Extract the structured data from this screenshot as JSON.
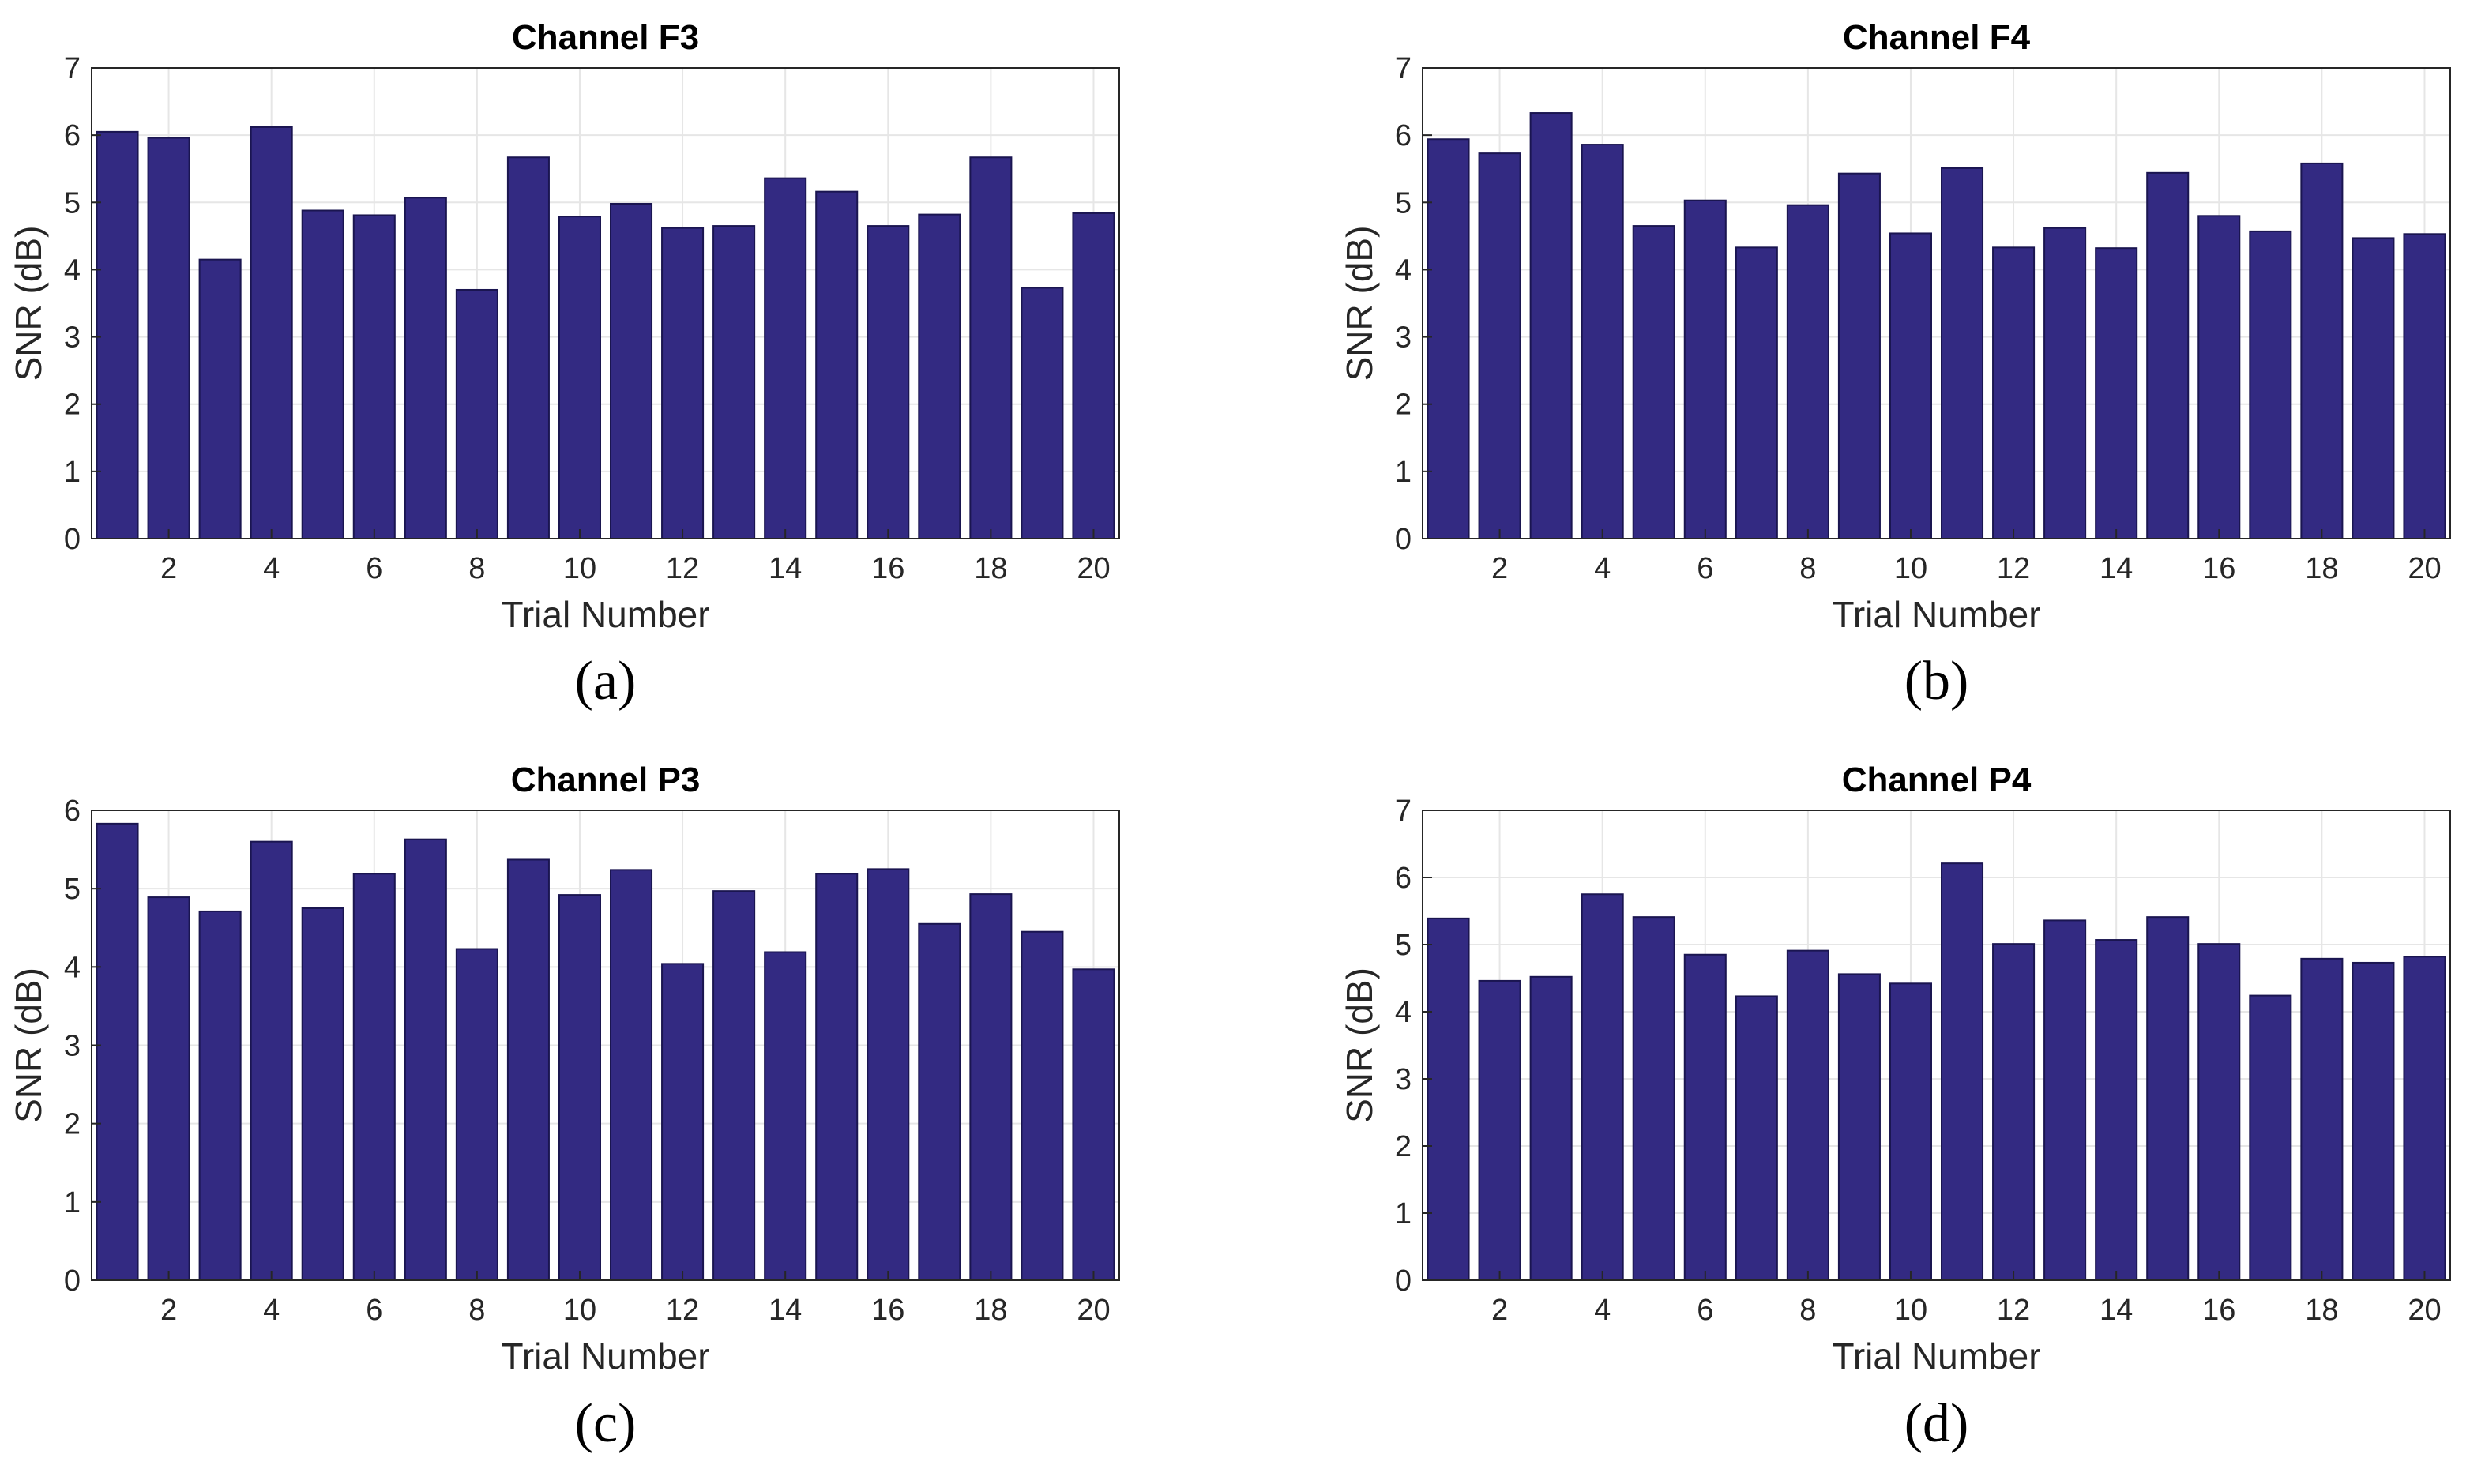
{
  "colors": {
    "bar": "#332a82",
    "bar_edge": "#1a1550",
    "grid": "#e6e6e6",
    "axis": "#262626",
    "text": "#262626"
  },
  "chart_data": [
    {
      "type": "bar",
      "title": "Channel F3",
      "caption": "(a)",
      "xlabel": "Trial Number",
      "ylabel": "SNR (dB)",
      "x": [
        1,
        2,
        3,
        4,
        5,
        6,
        7,
        8,
        9,
        10,
        11,
        12,
        13,
        14,
        15,
        16,
        17,
        18,
        19,
        20
      ],
      "values": [
        6.05,
        5.96,
        4.15,
        6.12,
        4.88,
        4.81,
        5.07,
        3.7,
        5.67,
        4.79,
        4.98,
        4.62,
        4.65,
        5.36,
        5.16,
        4.65,
        4.82,
        5.67,
        3.73,
        4.84
      ],
      "xticks": [
        2,
        4,
        6,
        8,
        10,
        12,
        14,
        16,
        18,
        20
      ],
      "yticks": [
        0,
        1,
        2,
        3,
        4,
        5,
        6,
        7
      ],
      "xlim": [
        0.5,
        20.5
      ],
      "ylim": [
        0,
        7
      ],
      "grid": true
    },
    {
      "type": "bar",
      "title": "Channel F4",
      "caption": "(b)",
      "xlabel": "Trial Number",
      "ylabel": "SNR (dB)",
      "x": [
        1,
        2,
        3,
        4,
        5,
        6,
        7,
        8,
        9,
        10,
        11,
        12,
        13,
        14,
        15,
        16,
        17,
        18,
        19,
        20
      ],
      "values": [
        5.94,
        5.73,
        6.33,
        5.86,
        4.65,
        5.03,
        4.33,
        4.96,
        5.43,
        4.54,
        5.51,
        4.33,
        4.62,
        4.32,
        5.44,
        4.8,
        4.57,
        5.58,
        4.47,
        4.53
      ],
      "xticks": [
        2,
        4,
        6,
        8,
        10,
        12,
        14,
        16,
        18,
        20
      ],
      "yticks": [
        0,
        1,
        2,
        3,
        4,
        5,
        6,
        7
      ],
      "xlim": [
        0.5,
        20.5
      ],
      "ylim": [
        0,
        7
      ],
      "grid": true
    },
    {
      "type": "bar",
      "title": "Channel P3",
      "caption": "(c)",
      "xlabel": "Trial Number",
      "ylabel": "SNR (dB)",
      "x": [
        1,
        2,
        3,
        4,
        5,
        6,
        7,
        8,
        9,
        10,
        11,
        12,
        13,
        14,
        15,
        16,
        17,
        18,
        19,
        20
      ],
      "values": [
        5.83,
        4.89,
        4.71,
        5.6,
        4.75,
        5.19,
        5.63,
        4.23,
        5.37,
        4.92,
        5.24,
        4.04,
        4.97,
        4.19,
        5.19,
        5.25,
        4.55,
        4.93,
        4.45,
        3.97
      ],
      "xticks": [
        2,
        4,
        6,
        8,
        10,
        12,
        14,
        16,
        18,
        20
      ],
      "yticks": [
        0,
        1,
        2,
        3,
        4,
        5,
        6
      ],
      "xlim": [
        0.5,
        20.5
      ],
      "ylim": [
        0,
        6
      ],
      "grid": true
    },
    {
      "type": "bar",
      "title": "Channel P4",
      "caption": "(d)",
      "xlabel": "Trial Number",
      "ylabel": "SNR (dB)",
      "x": [
        1,
        2,
        3,
        4,
        5,
        6,
        7,
        8,
        9,
        10,
        11,
        12,
        13,
        14,
        15,
        16,
        17,
        18,
        19,
        20
      ],
      "values": [
        5.39,
        4.46,
        4.52,
        5.75,
        5.41,
        4.85,
        4.23,
        4.91,
        4.56,
        4.42,
        6.21,
        5.01,
        5.36,
        5.07,
        5.41,
        5.01,
        4.24,
        4.79,
        4.73,
        4.82
      ],
      "xticks": [
        2,
        4,
        6,
        8,
        10,
        12,
        14,
        16,
        18,
        20
      ],
      "yticks": [
        0,
        1,
        2,
        3,
        4,
        5,
        6,
        7
      ],
      "xlim": [
        0.5,
        20.5
      ],
      "ylim": [
        0,
        7
      ],
      "grid": true
    }
  ]
}
